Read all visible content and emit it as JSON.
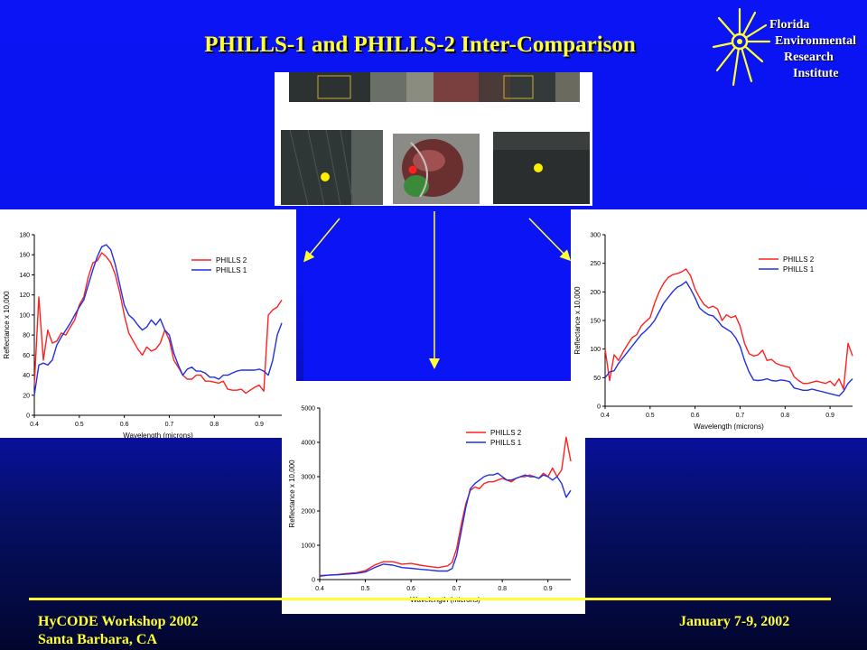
{
  "slide": {
    "title": "PHILLS-1 and PHILLS-2 Inter-Comparison",
    "footer_left_line1": "HyCODE Workshop 2002",
    "footer_left_line2": "Santa Barbara, CA",
    "footer_right": "January 7-9, 2002",
    "title_color": "#ffff33",
    "background_color": "#0a14f4"
  },
  "logo": {
    "line1": "Florida",
    "line2": "Environmental",
    "line3": "Research",
    "line4": "Institute",
    "icon": "sun-icon"
  },
  "chart_data": [
    {
      "type": "line",
      "id": "left",
      "xlabel": "Wavelength (microns)",
      "ylabel": "Reflectance x 10,000",
      "xlim": [
        0.4,
        0.95
      ],
      "ylim": [
        0,
        180
      ],
      "xticks": [
        0.4,
        0.5,
        0.6,
        0.7,
        0.8,
        0.9
      ],
      "yticks": [
        0,
        20,
        40,
        60,
        80,
        100,
        120,
        140,
        160,
        180
      ],
      "legend_position": "top-right",
      "series": [
        {
          "name": "PHILLS 2",
          "color": "#ff2020",
          "x": [
            0.4,
            0.41,
            0.42,
            0.43,
            0.44,
            0.45,
            0.46,
            0.47,
            0.48,
            0.49,
            0.5,
            0.51,
            0.52,
            0.53,
            0.54,
            0.55,
            0.56,
            0.57,
            0.58,
            0.59,
            0.6,
            0.61,
            0.62,
            0.63,
            0.64,
            0.65,
            0.66,
            0.67,
            0.68,
            0.69,
            0.7,
            0.71,
            0.72,
            0.73,
            0.74,
            0.75,
            0.76,
            0.77,
            0.78,
            0.79,
            0.8,
            0.81,
            0.82,
            0.83,
            0.84,
            0.85,
            0.86,
            0.87,
            0.88,
            0.89,
            0.9,
            0.91,
            0.92,
            0.93,
            0.94,
            0.95
          ],
          "y": [
            30,
            118,
            55,
            85,
            72,
            74,
            82,
            80,
            88,
            95,
            110,
            118,
            138,
            152,
            154,
            162,
            158,
            152,
            140,
            122,
            100,
            82,
            74,
            66,
            60,
            68,
            64,
            66,
            72,
            85,
            75,
            55,
            48,
            40,
            36,
            36,
            40,
            40,
            34,
            34,
            33,
            32,
            34,
            26,
            25,
            25,
            26,
            22,
            25,
            28,
            30,
            24,
            100,
            105,
            108,
            115
          ]
        },
        {
          "name": "PHILLS 1",
          "color": "#2030e0",
          "x": [
            0.4,
            0.41,
            0.42,
            0.43,
            0.44,
            0.45,
            0.46,
            0.47,
            0.48,
            0.49,
            0.5,
            0.51,
            0.52,
            0.53,
            0.54,
            0.55,
            0.56,
            0.57,
            0.58,
            0.59,
            0.6,
            0.61,
            0.62,
            0.63,
            0.64,
            0.65,
            0.66,
            0.67,
            0.68,
            0.69,
            0.7,
            0.71,
            0.72,
            0.73,
            0.74,
            0.75,
            0.76,
            0.77,
            0.78,
            0.79,
            0.8,
            0.81,
            0.82,
            0.83,
            0.84,
            0.85,
            0.86,
            0.87,
            0.88,
            0.89,
            0.9,
            0.91,
            0.92,
            0.93,
            0.94,
            0.95
          ],
          "y": [
            20,
            50,
            52,
            50,
            55,
            70,
            78,
            85,
            92,
            100,
            108,
            115,
            130,
            145,
            158,
            168,
            170,
            165,
            150,
            130,
            110,
            100,
            96,
            90,
            85,
            88,
            95,
            90,
            96,
            85,
            80,
            62,
            50,
            40,
            46,
            48,
            44,
            44,
            42,
            38,
            38,
            36,
            40,
            40,
            42,
            44,
            45,
            45,
            45,
            45,
            46,
            44,
            40,
            55,
            80,
            92
          ]
        }
      ]
    },
    {
      "type": "line",
      "id": "right",
      "xlabel": "Wavelength (microns)",
      "ylabel": "Reflectance x 10,000",
      "xlim": [
        0.4,
        0.95
      ],
      "ylim": [
        0,
        300
      ],
      "xticks": [
        0.4,
        0.5,
        0.6,
        0.7,
        0.8,
        0.9
      ],
      "yticks": [
        0,
        50,
        100,
        150,
        200,
        250,
        300
      ],
      "legend_position": "top-right",
      "series": [
        {
          "name": "PHILLS 2",
          "color": "#ff2020",
          "x": [
            0.4,
            0.41,
            0.42,
            0.43,
            0.44,
            0.45,
            0.46,
            0.47,
            0.48,
            0.49,
            0.5,
            0.51,
            0.52,
            0.53,
            0.54,
            0.55,
            0.56,
            0.57,
            0.58,
            0.59,
            0.6,
            0.61,
            0.62,
            0.63,
            0.64,
            0.65,
            0.66,
            0.67,
            0.68,
            0.69,
            0.7,
            0.71,
            0.72,
            0.73,
            0.74,
            0.75,
            0.76,
            0.77,
            0.78,
            0.79,
            0.8,
            0.81,
            0.82,
            0.83,
            0.84,
            0.85,
            0.86,
            0.87,
            0.88,
            0.89,
            0.9,
            0.91,
            0.92,
            0.93,
            0.94,
            0.95
          ],
          "y": [
            100,
            45,
            90,
            80,
            95,
            108,
            120,
            125,
            140,
            148,
            155,
            180,
            200,
            215,
            225,
            230,
            232,
            235,
            240,
            228,
            205,
            190,
            178,
            172,
            175,
            170,
            150,
            160,
            155,
            158,
            140,
            110,
            92,
            88,
            90,
            98,
            80,
            82,
            75,
            72,
            70,
            68,
            52,
            45,
            40,
            40,
            42,
            44,
            42,
            40,
            44,
            36,
            48,
            30,
            110,
            88
          ]
        },
        {
          "name": "PHILLS 1",
          "color": "#2030e0",
          "x": [
            0.4,
            0.41,
            0.42,
            0.43,
            0.44,
            0.45,
            0.46,
            0.47,
            0.48,
            0.49,
            0.5,
            0.51,
            0.52,
            0.53,
            0.54,
            0.55,
            0.56,
            0.57,
            0.58,
            0.59,
            0.6,
            0.61,
            0.62,
            0.63,
            0.64,
            0.65,
            0.66,
            0.67,
            0.68,
            0.69,
            0.7,
            0.71,
            0.72,
            0.73,
            0.74,
            0.75,
            0.76,
            0.77,
            0.78,
            0.79,
            0.8,
            0.81,
            0.82,
            0.83,
            0.84,
            0.85,
            0.86,
            0.87,
            0.88,
            0.89,
            0.9,
            0.91,
            0.92,
            0.93,
            0.94,
            0.95
          ],
          "y": [
            50,
            60,
            62,
            75,
            85,
            95,
            105,
            115,
            125,
            132,
            140,
            150,
            165,
            180,
            190,
            200,
            208,
            212,
            218,
            205,
            190,
            172,
            165,
            160,
            158,
            150,
            140,
            135,
            130,
            120,
            105,
            80,
            60,
            46,
            45,
            46,
            48,
            45,
            44,
            46,
            45,
            43,
            32,
            30,
            28,
            28,
            30,
            28,
            26,
            24,
            22,
            20,
            18,
            26,
            40,
            48
          ]
        }
      ]
    },
    {
      "type": "line",
      "id": "center",
      "xlabel": "Wavelength (microns)",
      "ylabel": "Reflectance x 10,000",
      "xlim": [
        0.4,
        0.95
      ],
      "ylim": [
        0,
        5000
      ],
      "xticks": [
        0.4,
        0.5,
        0.6,
        0.7,
        0.8,
        0.9
      ],
      "yticks": [
        0,
        1000,
        2000,
        3000,
        4000,
        5000
      ],
      "legend_position": "top-right",
      "series": [
        {
          "name": "PHILLS 2",
          "color": "#ff2020",
          "x": [
            0.4,
            0.42,
            0.44,
            0.46,
            0.48,
            0.5,
            0.52,
            0.54,
            0.56,
            0.58,
            0.6,
            0.62,
            0.64,
            0.66,
            0.68,
            0.69,
            0.7,
            0.71,
            0.72,
            0.73,
            0.74,
            0.75,
            0.76,
            0.77,
            0.78,
            0.79,
            0.8,
            0.81,
            0.82,
            0.83,
            0.84,
            0.85,
            0.86,
            0.87,
            0.88,
            0.89,
            0.9,
            0.91,
            0.92,
            0.93,
            0.94,
            0.95
          ],
          "y": [
            120,
            130,
            150,
            180,
            200,
            260,
            420,
            520,
            520,
            450,
            470,
            420,
            380,
            350,
            400,
            500,
            900,
            1600,
            2200,
            2600,
            2700,
            2650,
            2800,
            2850,
            2850,
            2900,
            2950,
            2900,
            2850,
            2950,
            3000,
            3000,
            3050,
            3000,
            2950,
            3100,
            3000,
            3250,
            3000,
            3200,
            4150,
            3450
          ]
        },
        {
          "name": "PHILLS 1",
          "color": "#2030e0",
          "x": [
            0.4,
            0.42,
            0.44,
            0.46,
            0.48,
            0.5,
            0.52,
            0.54,
            0.56,
            0.58,
            0.6,
            0.62,
            0.64,
            0.66,
            0.68,
            0.69,
            0.7,
            0.71,
            0.72,
            0.73,
            0.74,
            0.75,
            0.76,
            0.77,
            0.78,
            0.79,
            0.8,
            0.81,
            0.82,
            0.83,
            0.84,
            0.85,
            0.86,
            0.87,
            0.88,
            0.89,
            0.9,
            0.91,
            0.92,
            0.93,
            0.94,
            0.95
          ],
          "y": [
            100,
            130,
            140,
            160,
            180,
            220,
            350,
            450,
            420,
            350,
            330,
            300,
            280,
            250,
            250,
            320,
            700,
            1400,
            2100,
            2650,
            2800,
            2900,
            3000,
            3050,
            3050,
            3100,
            3000,
            2900,
            2900,
            2950,
            3000,
            3050,
            3000,
            3000,
            2950,
            3050,
            3000,
            2900,
            3000,
            2800,
            2400,
            2600
          ]
        }
      ]
    }
  ]
}
